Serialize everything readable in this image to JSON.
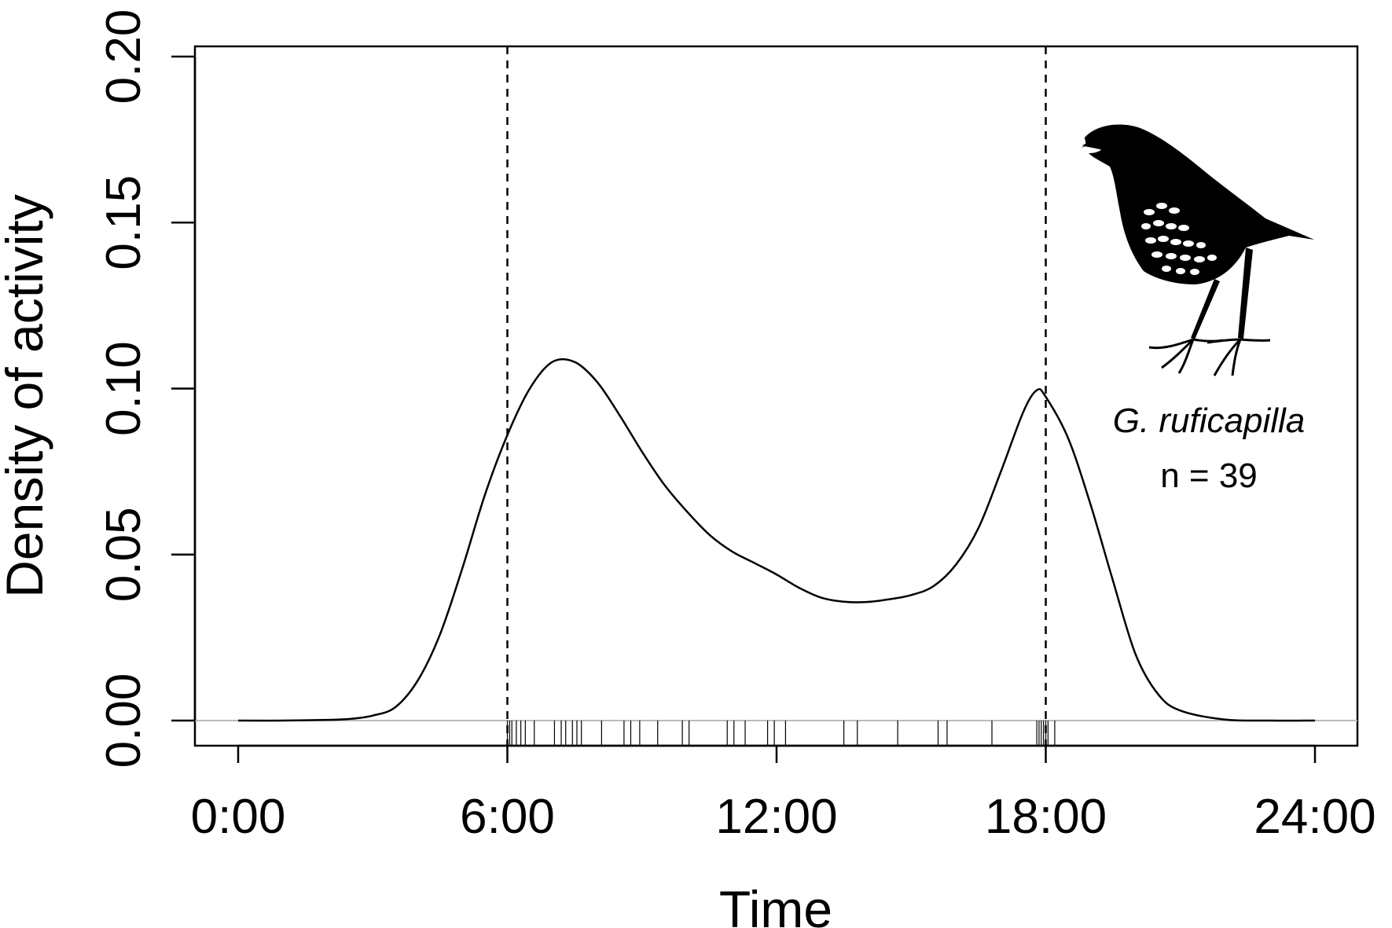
{
  "chart_data": {
    "type": "line",
    "xlabel": "Time",
    "ylabel": "Density of activity",
    "xlim": [
      0,
      24
    ],
    "ylim": [
      0,
      0.2
    ],
    "x_ticks": [
      {
        "value": 0,
        "label": "0:00"
      },
      {
        "value": 6,
        "label": "6:00"
      },
      {
        "value": 12,
        "label": "12:00"
      },
      {
        "value": 18,
        "label": "18:00"
      },
      {
        "value": 24,
        "label": "24:00"
      }
    ],
    "y_ticks": [
      {
        "value": 0,
        "label": "0.00"
      },
      {
        "value": 0.05,
        "label": "0.05"
      },
      {
        "value": 0.1,
        "label": "0.10"
      },
      {
        "value": 0.15,
        "label": "0.15"
      },
      {
        "value": 0.2,
        "label": "0.20"
      }
    ],
    "grid": false,
    "reference_lines": [
      {
        "axis": "x",
        "value": 6,
        "style": "dashed"
      },
      {
        "axis": "x",
        "value": 18,
        "style": "dashed"
      },
      {
        "axis": "y",
        "value": 0,
        "style": "solid",
        "color": "#bbbbbb"
      }
    ],
    "series": [
      {
        "x": [
          0,
          1,
          2,
          2.5,
          3,
          3.5,
          4,
          4.5,
          5,
          5.5,
          6,
          6.5,
          7,
          7.5,
          8,
          8.5,
          9,
          9.5,
          10,
          10.5,
          11,
          11.5,
          12,
          12.5,
          13,
          13.5,
          14,
          14.5,
          15,
          15.5,
          16,
          16.5,
          17,
          17.5,
          17.8,
          18,
          18.5,
          19,
          19.5,
          20,
          20.5,
          21,
          22,
          23,
          24
        ],
        "y": [
          0,
          0,
          0.0002,
          0.0005,
          0.0015,
          0.004,
          0.012,
          0.026,
          0.046,
          0.068,
          0.086,
          0.1,
          0.108,
          0.108,
          0.102,
          0.092,
          0.081,
          0.071,
          0.063,
          0.056,
          0.051,
          0.0475,
          0.044,
          0.04,
          0.037,
          0.0358,
          0.0357,
          0.0365,
          0.0378,
          0.0405,
          0.047,
          0.058,
          0.075,
          0.093,
          0.0995,
          0.0975,
          0.085,
          0.065,
          0.042,
          0.02,
          0.008,
          0.003,
          0.0003,
          0,
          0
        ]
      }
    ],
    "rug": [
      6,
      6.05,
      6.1,
      6.2,
      6.3,
      6.4,
      6.6,
      7.05,
      7.2,
      7.3,
      7.45,
      7.55,
      7.65,
      8.1,
      8.6,
      8.75,
      8.95,
      9.35,
      9.9,
      10.05,
      10.9,
      11.05,
      11.3,
      11.8,
      11.95,
      12.2,
      13.5,
      13.8,
      14.7,
      15.6,
      15.8,
      16.8,
      17.8,
      17.85,
      17.9,
      17.95,
      18.0,
      18.05,
      18.2
    ],
    "annotations": {
      "species": "G. ruficapilla",
      "n": "n = 39"
    }
  },
  "icons": {
    "bird": "bird-silhouette-icon"
  },
  "colors": {
    "line": "#000000",
    "baseline": "#bbbbbb",
    "axis": "#000000"
  }
}
